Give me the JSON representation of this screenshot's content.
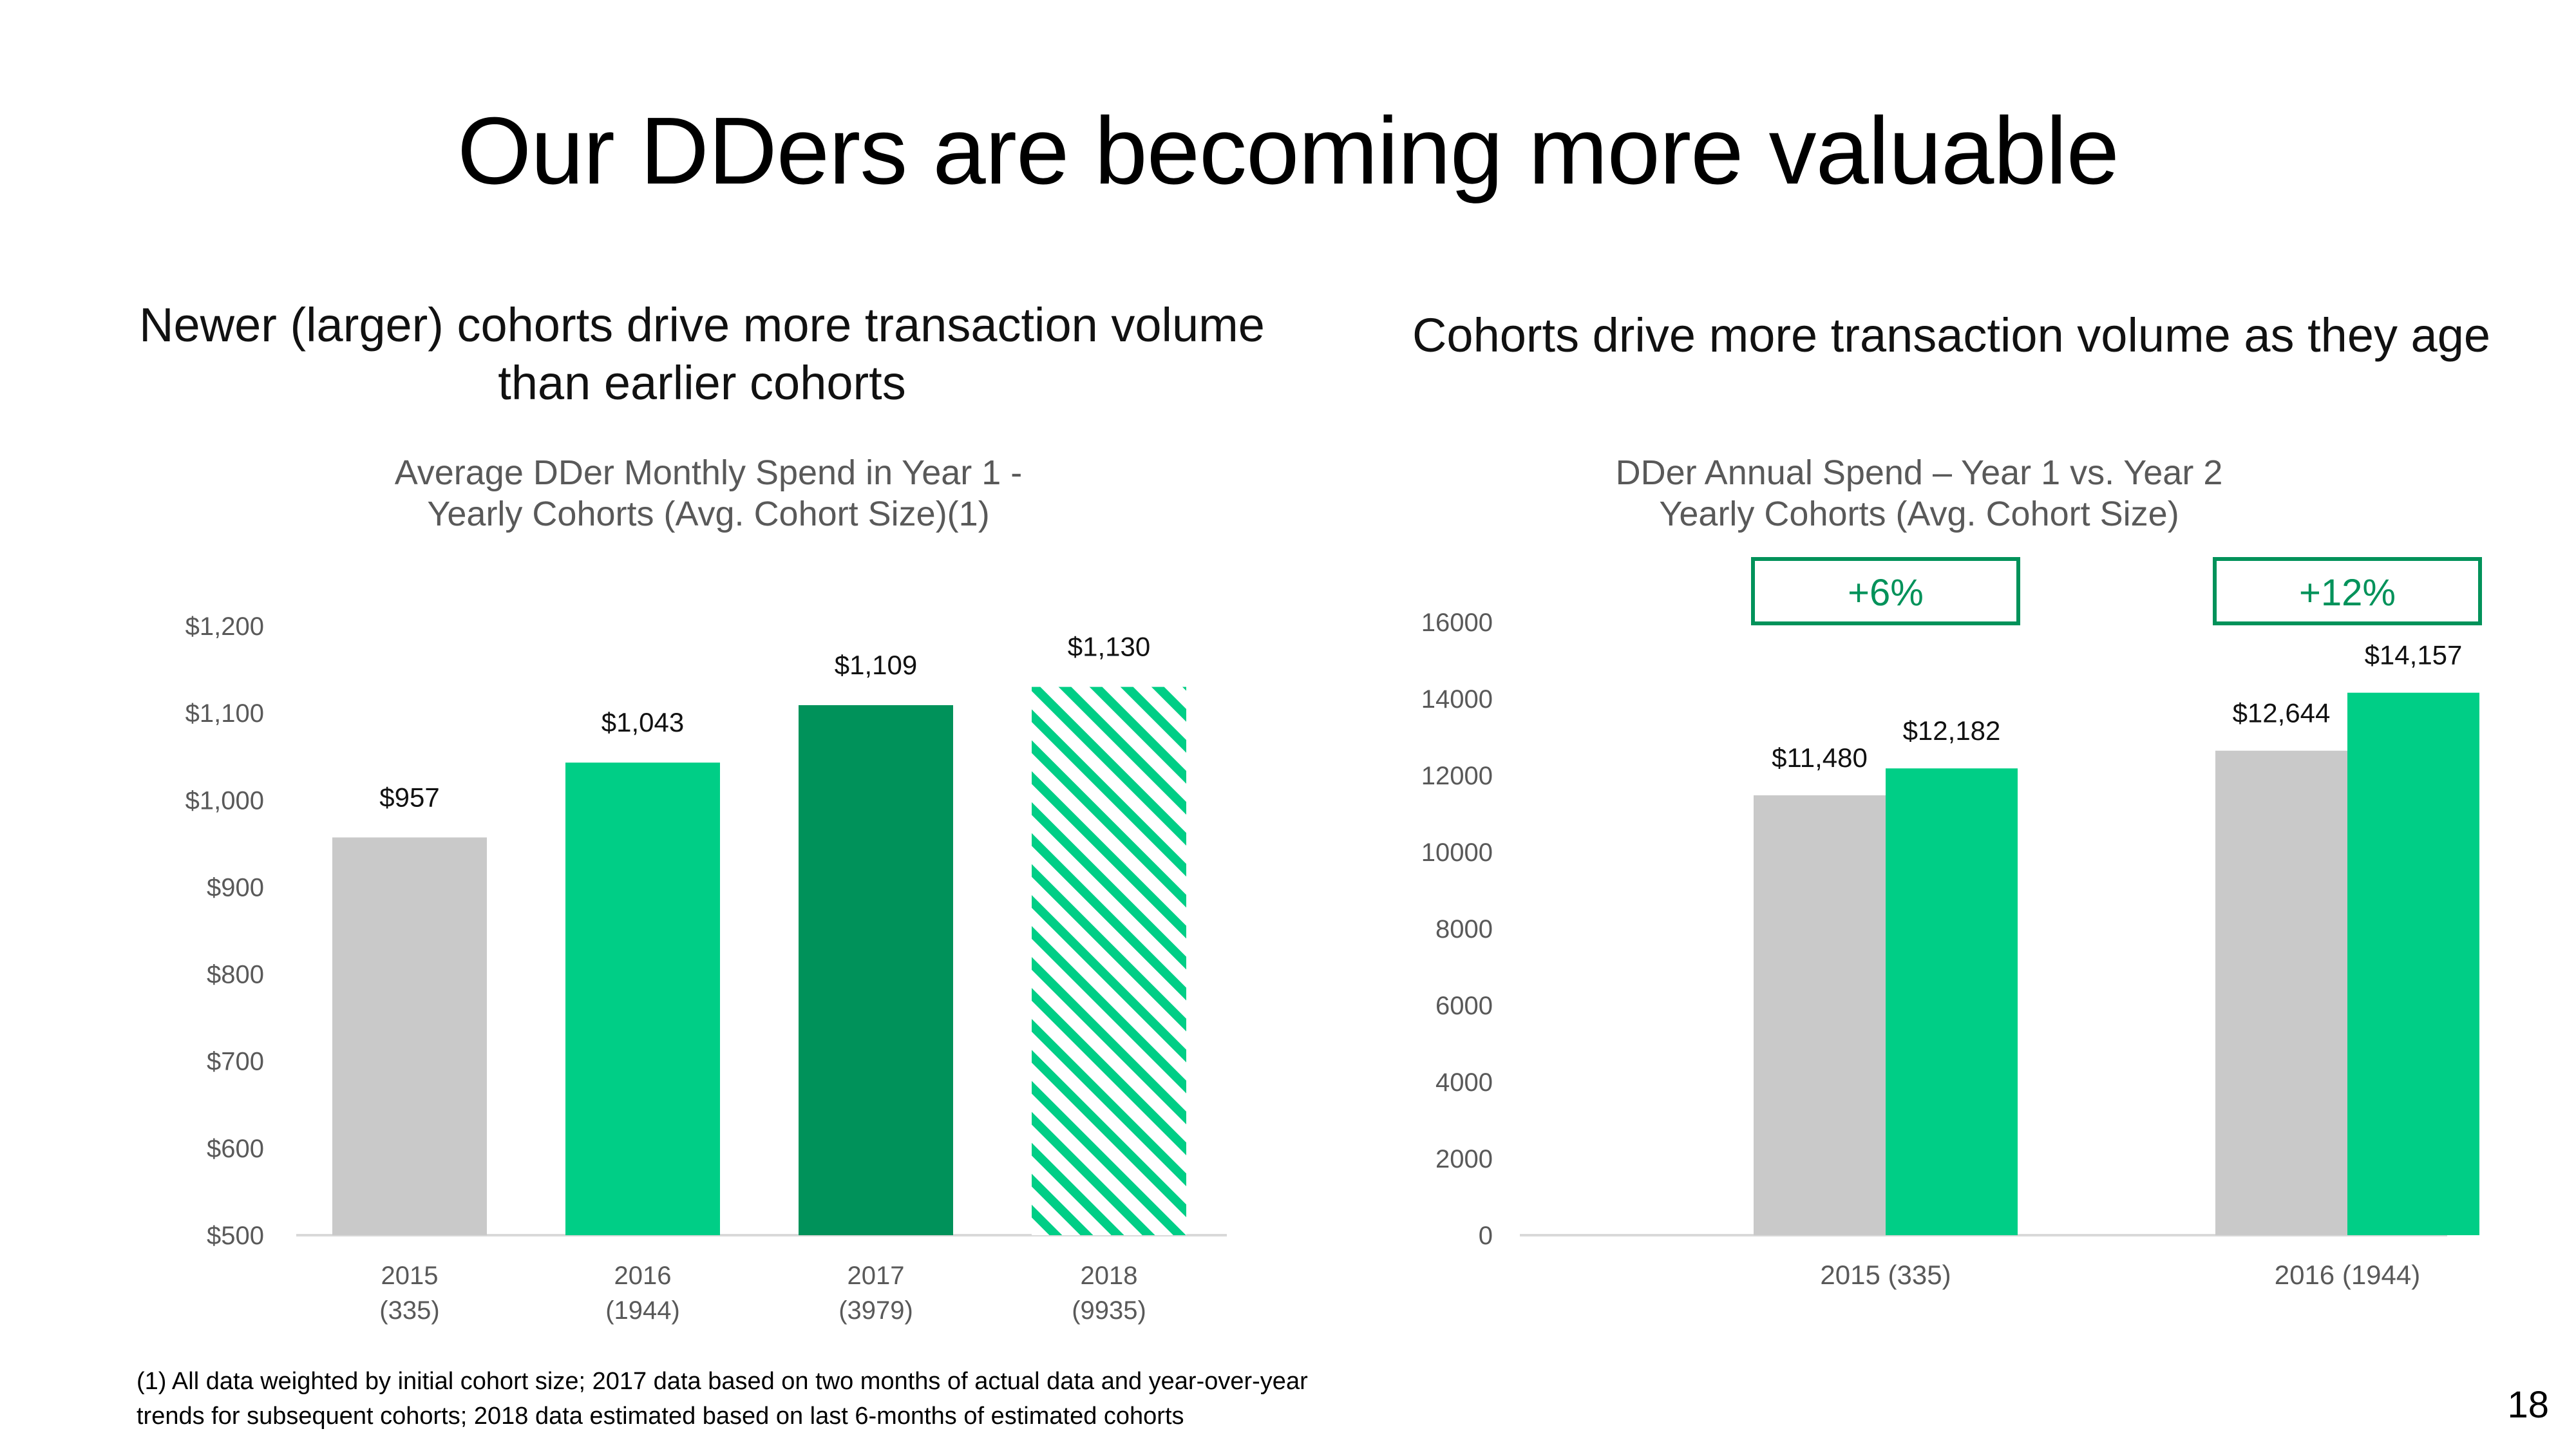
{
  "slide": {
    "title": "Our DDers are becoming more valuable",
    "left_heading": "Newer (larger) cohorts drive more transaction volume than earlier cohorts",
    "right_heading": "Cohorts drive more transaction volume as they age",
    "footnote": "(1) All data weighted by initial cohort size; 2017 data based on two months of actual data and year-over-year trends for subsequent cohorts; 2018 data estimated based on last 6-months of estimated cohorts",
    "page_number": "18"
  },
  "colors": {
    "gray": "#c9c9c9",
    "green": "#00ce86",
    "dark_green": "#00925a",
    "box_border": "#00925a",
    "axis_text": "#595959"
  },
  "chart_data": [
    {
      "type": "bar",
      "title": "Average DDer Monthly Spend in Year 1 - Yearly Cohorts (Avg. Cohort Size)(1)",
      "title_lines": [
        "Average DDer Monthly Spend in Year 1 -",
        "Yearly Cohorts (Avg. Cohort Size)(1)"
      ],
      "categories": [
        [
          "2015",
          "(335)"
        ],
        [
          "2016",
          "(1944)"
        ],
        [
          "2017",
          "(3979)"
        ],
        [
          "2018",
          "(9935)"
        ]
      ],
      "values": [
        957,
        1043,
        1109,
        1130
      ],
      "data_labels": [
        "$957",
        "$1,043",
        "$1,109",
        "$1,130"
      ],
      "bar_styles": [
        "gray",
        "green",
        "dark_green",
        "hatched_green"
      ],
      "ylim": [
        500,
        1200
      ],
      "yticks": [
        500,
        600,
        700,
        800,
        900,
        1000,
        1100,
        1200
      ],
      "ytick_labels": [
        "$500",
        "$600",
        "$700",
        "$800",
        "$900",
        "$1,000",
        "$1,100",
        "$1,200"
      ],
      "grid": false,
      "legend": "none"
    },
    {
      "type": "bar",
      "title": "DDer Annual Spend – Year 1 vs. Year 2 Yearly Cohorts (Avg. Cohort Size)",
      "title_lines": [
        "DDer Annual Spend – Year 1 vs. Year 2",
        "Yearly Cohorts (Avg. Cohort Size)"
      ],
      "categories": [
        "2015 (335)",
        "2016 (1944)"
      ],
      "series": [
        {
          "values": [
            11480,
            12644
          ],
          "data_labels": [
            "$11,480",
            "$12,644"
          ],
          "color": "gray"
        },
        {
          "values": [
            12182,
            14157
          ],
          "data_labels": [
            "$12,182",
            "$14,157"
          ],
          "color": "green"
        }
      ],
      "ylim": [
        0,
        16000
      ],
      "yticks": [
        0,
        2000,
        4000,
        6000,
        8000,
        10000,
        12000,
        14000,
        16000
      ],
      "ytick_labels": [
        "0",
        "2000",
        "4000",
        "6000",
        "8000",
        "10000",
        "12000",
        "14000",
        "16000"
      ],
      "annotations": [
        "+6%",
        "+12%"
      ],
      "grid": false,
      "legend": "none"
    }
  ]
}
